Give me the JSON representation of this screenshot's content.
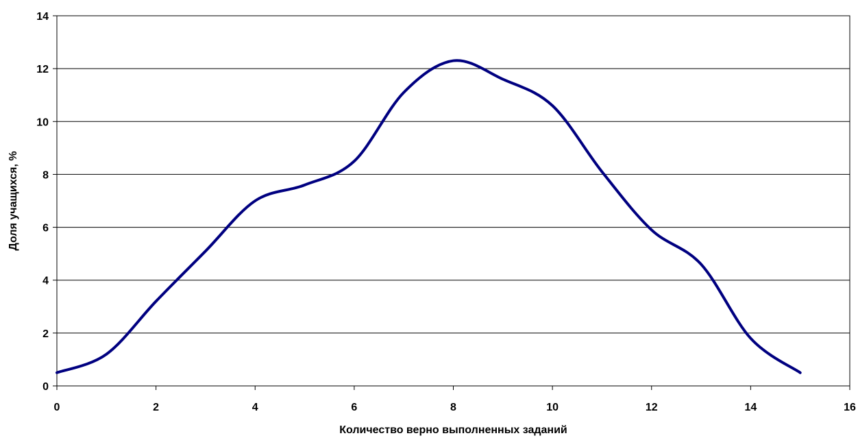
{
  "chart_data": {
    "type": "line",
    "title": "",
    "xlabel": "Количество верно выполненных заданий",
    "ylabel": "Доля учащихся, %",
    "xlim": [
      0,
      16
    ],
    "ylim": [
      0,
      14
    ],
    "x_ticks": [
      "0",
      "2",
      "4",
      "6",
      "8",
      "10",
      "12",
      "14",
      "16"
    ],
    "y_ticks": [
      "0",
      "2",
      "4",
      "6",
      "8",
      "10",
      "12",
      "14"
    ],
    "grid": "horizontal",
    "legend": "none",
    "series": [
      {
        "color": "#000080",
        "x": [
          0,
          1,
          2,
          3,
          4,
          5,
          6,
          7,
          8,
          9,
          10,
          11,
          12,
          13,
          14,
          15
        ],
        "y": [
          0.5,
          1.2,
          3.2,
          5.1,
          7.0,
          7.6,
          8.5,
          11.1,
          12.3,
          11.6,
          10.6,
          8.1,
          5.9,
          4.6,
          1.8,
          0.5
        ]
      }
    ]
  }
}
